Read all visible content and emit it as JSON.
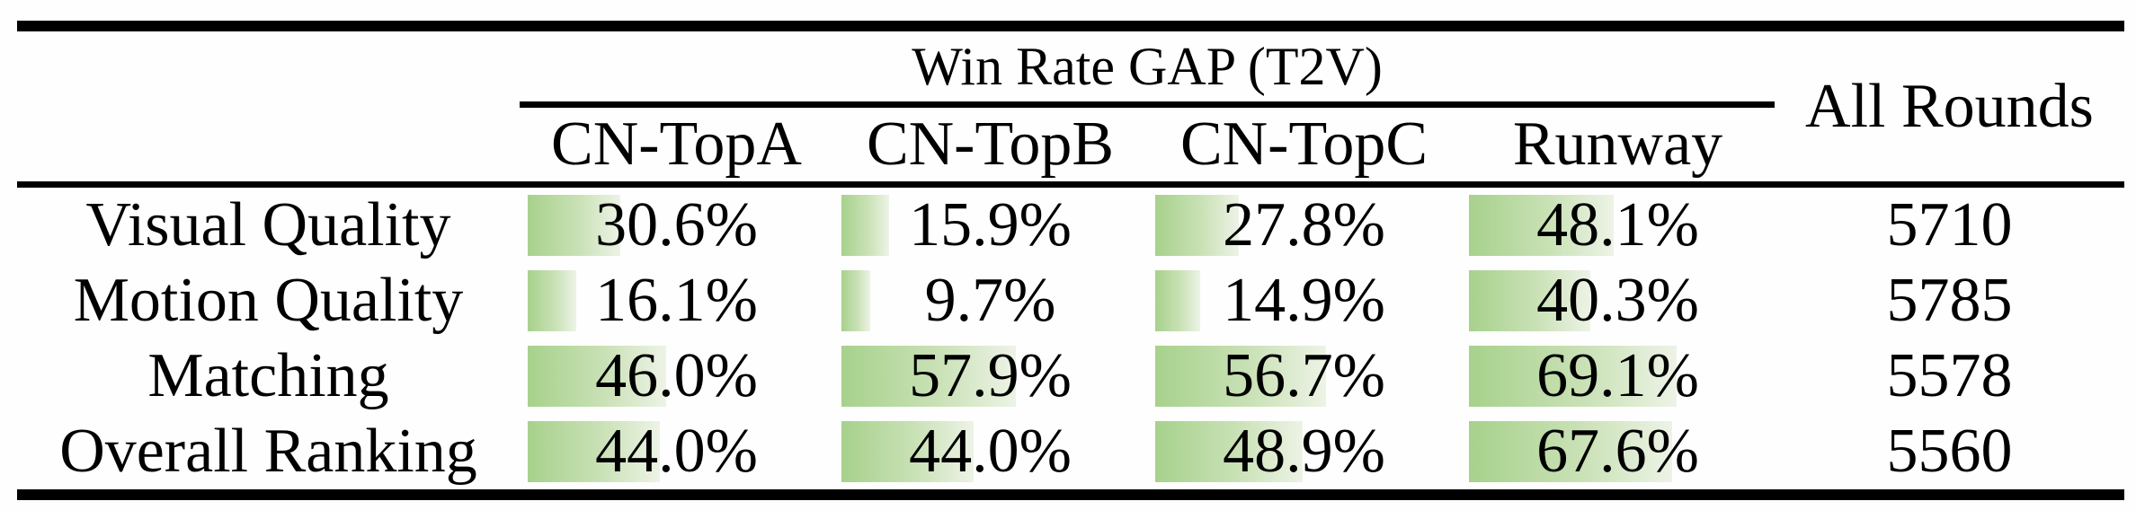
{
  "table": {
    "title": "Win Rate GAP (T2V)",
    "all_rounds_header": "All Rounds",
    "columns": [
      "CN-TopA",
      "CN-TopB",
      "CN-TopC",
      "Runway"
    ],
    "rows": [
      {
        "label": "Visual Quality",
        "values": [
          30.6,
          15.9,
          27.8,
          48.1
        ],
        "display": [
          "30.6%",
          "15.9%",
          "27.8%",
          "48.1%"
        ],
        "all_rounds": "5710"
      },
      {
        "label": "Motion Quality",
        "values": [
          16.1,
          9.7,
          14.9,
          40.3
        ],
        "display": [
          "16.1%",
          "9.7%",
          "14.9%",
          "40.3%"
        ],
        "all_rounds": "5785"
      },
      {
        "label": "Matching",
        "values": [
          46.0,
          57.9,
          56.7,
          69.1
        ],
        "display": [
          "46.0%",
          "57.9%",
          "56.7%",
          "69.1%"
        ],
        "all_rounds": "5578"
      },
      {
        "label": "Overall Ranking",
        "values": [
          44.0,
          44.0,
          48.9,
          67.6
        ],
        "display": [
          "44.0%",
          "44.0%",
          "48.9%",
          "67.6%"
        ],
        "all_rounds": "5560"
      }
    ],
    "bar_gradient": {
      "start": "#a7d18c",
      "mid": "#c9e1b5",
      "end": "#edf3e6"
    },
    "rule_color": "#000000"
  },
  "chart_data": {
    "type": "table",
    "title": "Win Rate GAP (T2V)",
    "columns": [
      "CN-TopA",
      "CN-TopB",
      "CN-TopC",
      "Runway",
      "All Rounds"
    ],
    "row_labels": [
      "Visual Quality",
      "Motion Quality",
      "Matching",
      "Overall Ranking"
    ],
    "series": [
      {
        "name": "CN-TopA",
        "values": [
          30.6,
          16.1,
          46.0,
          44.0
        ]
      },
      {
        "name": "CN-TopB",
        "values": [
          15.9,
          9.7,
          57.9,
          44.0
        ]
      },
      {
        "name": "CN-TopC",
        "values": [
          27.8,
          14.9,
          56.7,
          48.9
        ]
      },
      {
        "name": "Runway",
        "values": [
          48.1,
          40.3,
          69.1,
          67.6
        ]
      }
    ],
    "all_rounds": [
      5710,
      5785,
      5578,
      5560
    ],
    "value_unit": "%",
    "bar_scale": [
      0,
      100
    ]
  }
}
